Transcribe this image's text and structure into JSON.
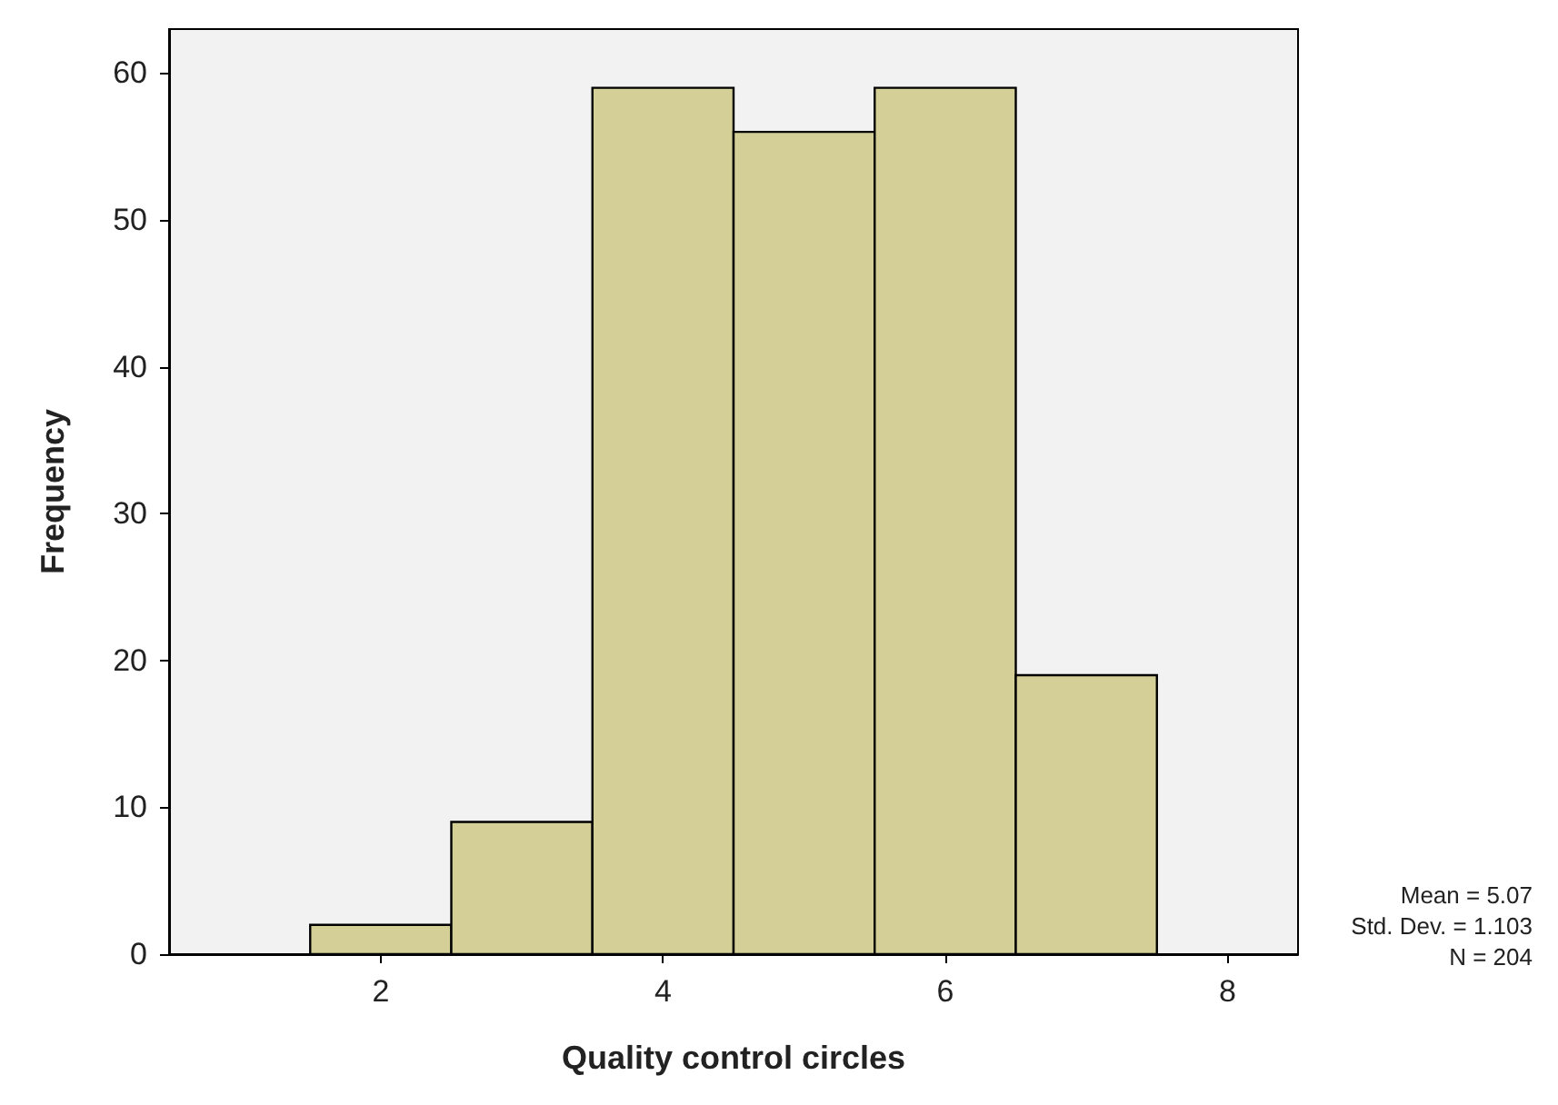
{
  "chart_data": {
    "type": "histogram",
    "xlabel": "Quality control circles",
    "ylabel": "Frequency",
    "bins": [
      1.5,
      2.5,
      3.5,
      4.5,
      5.5,
      6.5,
      7.5
    ],
    "values": [
      2,
      9,
      59,
      56,
      59,
      19
    ],
    "color": "#d3cf96",
    "xlim": [
      0.5,
      8.5
    ],
    "xticks": [
      2,
      4,
      6,
      8
    ],
    "ylim": [
      0,
      63
    ],
    "yticks": [
      0,
      10,
      20,
      30,
      40,
      50,
      60
    ],
    "grid": false,
    "annotations": [
      "Mean = 5.07",
      "Std. Dev. = 1.103",
      "N = 204"
    ]
  }
}
